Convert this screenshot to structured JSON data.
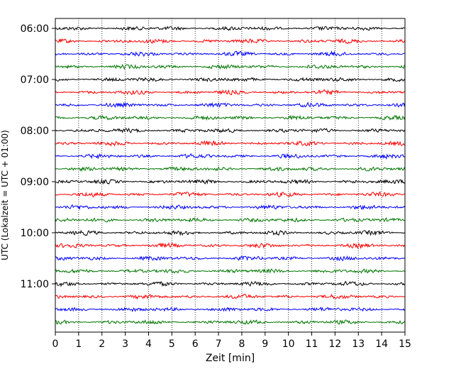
{
  "chart_data": {
    "type": "line",
    "title": "",
    "xlabel": "Zeit  [min]",
    "ylabel": "UTC (Lokalzeit = UTC + 01:00)",
    "xlim": [
      0,
      15
    ],
    "x_ticks": [
      "0",
      "1",
      "2",
      "3",
      "4",
      "5",
      "6",
      "7",
      "8",
      "9",
      "10",
      "11",
      "12",
      "13",
      "14",
      "15"
    ],
    "y_tick_labels": [
      "06:00",
      "07:00",
      "08:00",
      "09:00",
      "10:00",
      "11:00"
    ],
    "trace_interval_minutes": 15,
    "trace_start": "06:00",
    "trace_count": 24,
    "trace_color_cycle": [
      "#000000",
      "#ff0000",
      "#0000ff",
      "#007700"
    ],
    "grid": {
      "vertical": true,
      "style": "dotted"
    },
    "legend": "none"
  }
}
